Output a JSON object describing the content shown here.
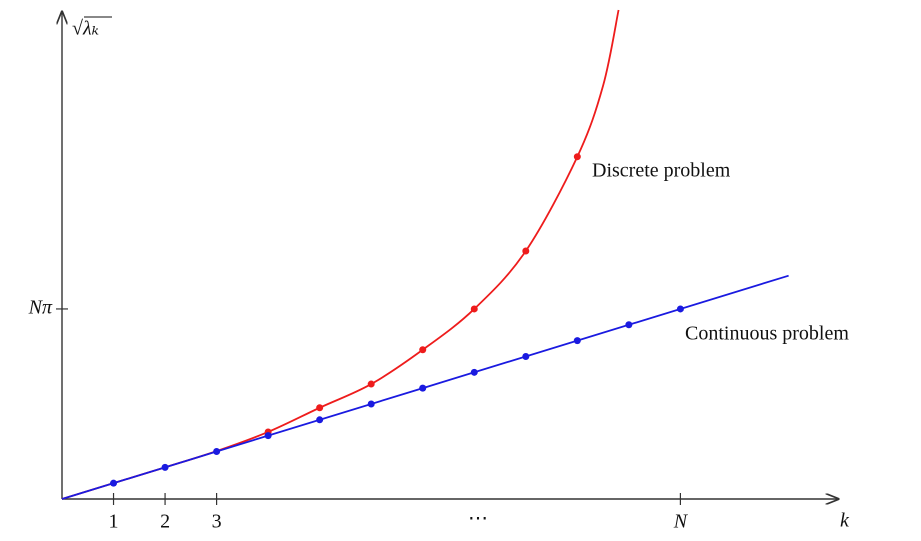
{
  "chart_data": {
    "type": "line",
    "x_label": "k",
    "y_label": "√λₖ",
    "xlim": [
      0,
      15
    ],
    "ylim": [
      0,
      97
    ],
    "xticks": [
      1,
      2,
      3,
      {
        "value": 12,
        "label": "N"
      }
    ],
    "yticks": [
      {
        "value": 37.7,
        "label": "Nπ"
      }
    ],
    "annotation": "⋯",
    "series": [
      {
        "name": "Discrete problem",
        "color": "#ee1c1c",
        "x": [
          0,
          1,
          2,
          3,
          4,
          5,
          6,
          7,
          8,
          9,
          10,
          10.5,
          10.8
        ],
        "values": [
          0,
          3.14,
          6.28,
          9.5,
          13.3,
          18.1,
          22.8,
          29.6,
          37.7,
          49.2,
          67.9,
          82,
          97
        ],
        "markers": {
          "x": [
            4,
            5,
            6,
            7,
            8,
            9,
            10
          ],
          "values": [
            13.3,
            18.1,
            22.8,
            29.6,
            37.7,
            49.2,
            67.9
          ]
        }
      },
      {
        "name": "Continuous problem",
        "color": "#1a1ae0",
        "x": [
          0,
          14.1
        ],
        "values": [
          0,
          44.3
        ],
        "markers": {
          "x": [
            1,
            2,
            3,
            4,
            5,
            6,
            7,
            8,
            9,
            10,
            11,
            12
          ],
          "values": [
            3.14,
            6.28,
            9.42,
            12.57,
            15.71,
            18.85,
            21.99,
            25.13,
            28.27,
            31.42,
            34.56,
            37.7
          ]
        }
      }
    ]
  }
}
